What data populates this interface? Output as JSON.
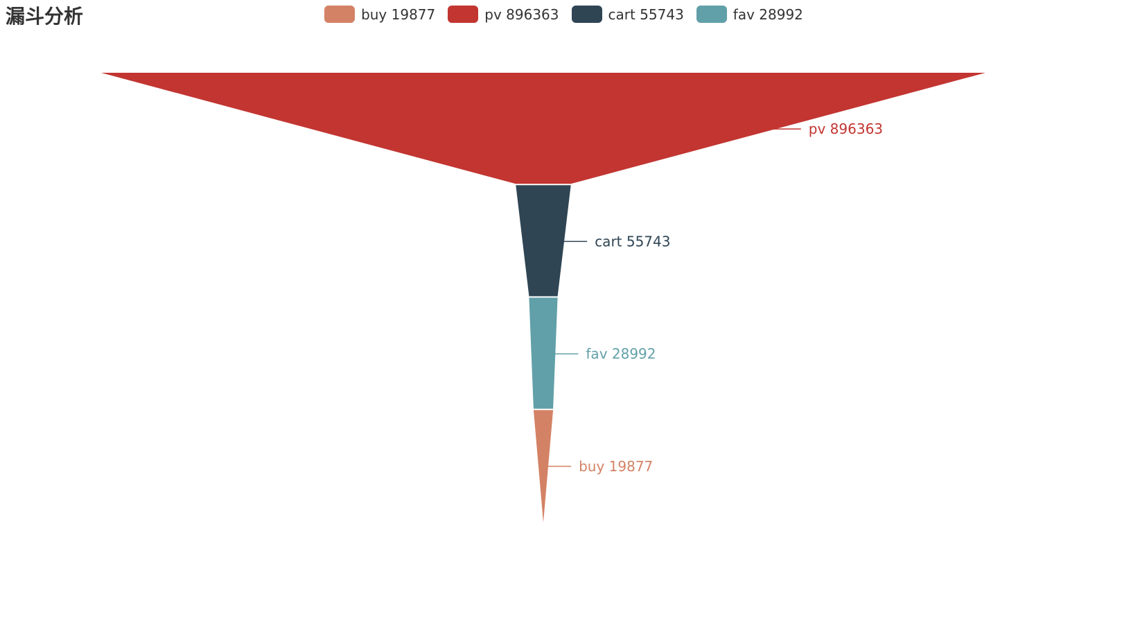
{
  "title": "漏斗分析",
  "colors": {
    "buy": "#d48265",
    "pv": "#c23531",
    "cart": "#2f4554",
    "fav": "#61a0a8"
  },
  "legend": [
    {
      "label": "buy 19877",
      "color": "#d48265"
    },
    {
      "label": "pv 896363",
      "color": "#c23531"
    },
    {
      "label": "cart 55743",
      "color": "#2f4554"
    },
    {
      "label": "fav 28992",
      "color": "#61a0a8"
    }
  ],
  "chart_data": {
    "type": "funnel",
    "title": "漏斗分析",
    "sort": "descending",
    "legend_position": "top-center",
    "categories": [
      "buy 19877",
      "pv 896363",
      "cart 55743",
      "fav 28992"
    ],
    "values": [
      19877,
      896363,
      55743,
      28992
    ],
    "stages": [
      {
        "label": "pv 896363",
        "value": 896363,
        "color": "#c23531"
      },
      {
        "label": "cart 55743",
        "value": 55743,
        "color": "#2f4554"
      },
      {
        "label": "fav 28992",
        "value": 28992,
        "color": "#61a0a8"
      },
      {
        "label": "buy 19877",
        "value": 19877,
        "color": "#d48265"
      }
    ]
  }
}
